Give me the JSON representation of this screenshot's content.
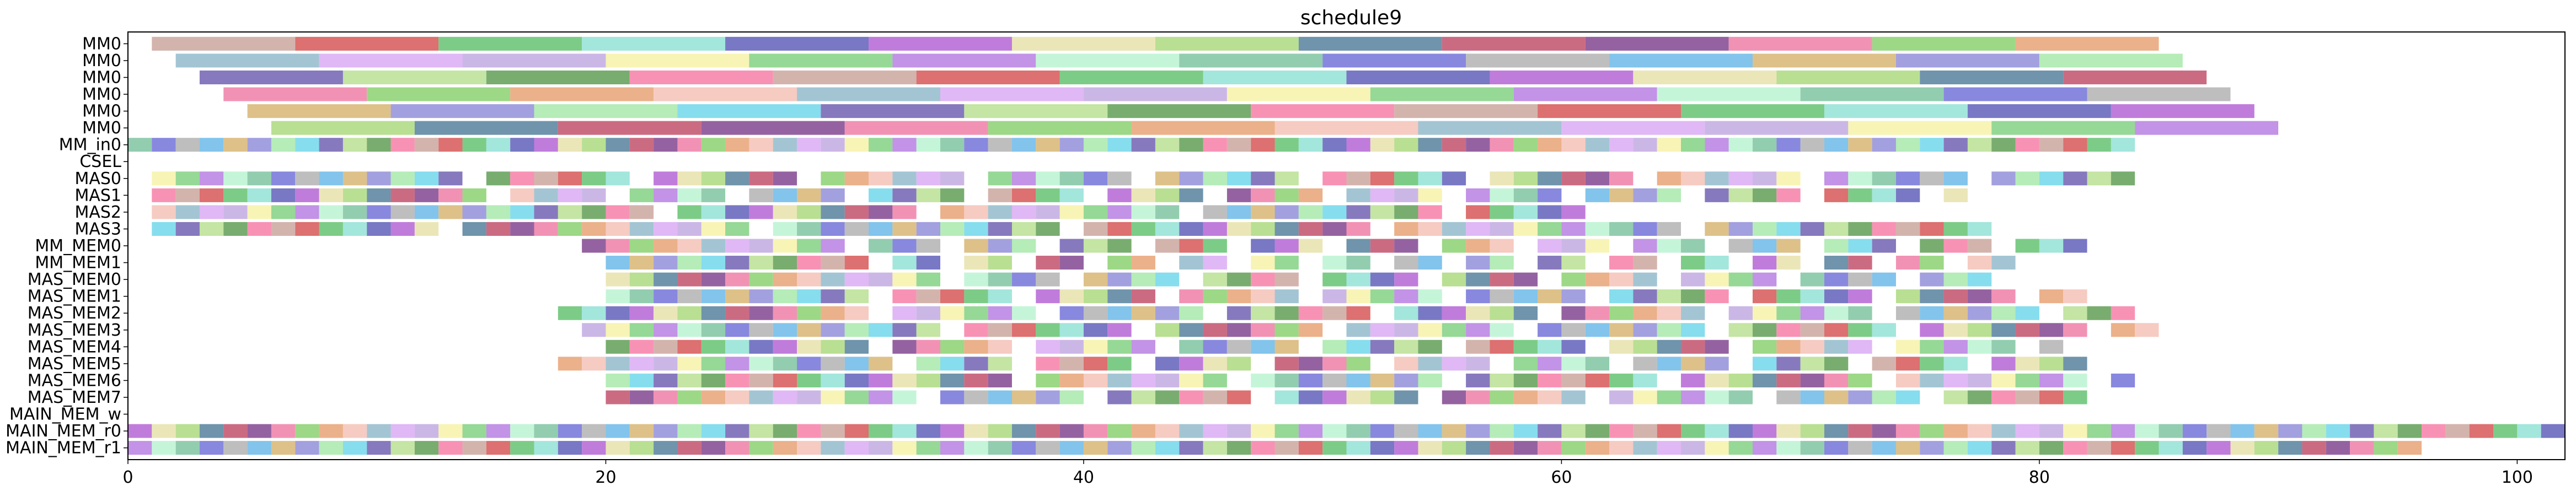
{
  "chart_data": {
    "type": "gantt",
    "title": "schedule9",
    "xlabel": "",
    "ylabel": "",
    "xlim": [
      0,
      102
    ],
    "xticks": [
      0,
      20,
      40,
      60,
      80,
      100
    ],
    "grid": false,
    "legend": "none",
    "rows": [
      "MM0",
      "MM0",
      "MM0",
      "MM0",
      "MM0",
      "MM0",
      "MM_in0",
      "CSEL",
      "MAS0",
      "MAS1",
      "MAS2",
      "MAS3",
      "MM_MEM0",
      "MM_MEM1",
      "MAS_MEM0",
      "MAS_MEM1",
      "MAS_MEM2",
      "MAS_MEM3",
      "MAS_MEM4",
      "MAS_MEM5",
      "MAS_MEM6",
      "MAS_MEM7",
      "MAIN_MEM_w",
      "MAIN_MEM_r0",
      "MAIN_MEM_r1"
    ],
    "palette": [
      "#c9a49b",
      "#b25fd3",
      "#7e3f8c",
      "#8fb8c9",
      "#b57be0",
      "#66b7e8",
      "#6c5bb0",
      "#d65050",
      "#e7e0a8",
      "#ee7aa3",
      "#d9a8f3",
      "#b8f3d0",
      "#d6b36f",
      "#b7df8f",
      "#5fc16d",
      "#a9d87a",
      "#86cf6b",
      "#bfa7e0",
      "#7ac29e",
      "#8f8bd8",
      "#5a9b4f",
      "#8fe0d4",
      "#4f7d99",
      "#e7a070",
      "#f5f1a6",
      "#6e6ed8",
      "#a5e8a8",
      "#f77aa5",
      "#5a5ab8",
      "#c04a67",
      "#f4c0b4",
      "#7fd07f",
      "#b0b0b0",
      "#6bd6e9"
    ],
    "gantt_rows": [
      {
        "row": 0,
        "start": 1,
        "dur": 6,
        "n": 14
      },
      {
        "row": 1,
        "start": 2,
        "dur": 6,
        "n": 14
      },
      {
        "row": 2,
        "start": 3,
        "dur": 6,
        "n": 14
      },
      {
        "row": 3,
        "start": 4,
        "dur": 6,
        "n": 14
      },
      {
        "row": 4,
        "start": 5,
        "dur": 6,
        "n": 14
      },
      {
        "row": 5,
        "start": 6,
        "dur": 6,
        "n": 14
      },
      {
        "row": 6,
        "start": 0,
        "dur": 1,
        "n": 84
      },
      {
        "row": 8,
        "start": 1,
        "dur": 1,
        "skip": 7,
        "n": 84
      },
      {
        "row": 9,
        "start": 1,
        "dur": 1,
        "skip": 5,
        "n": 76
      },
      {
        "row": 10,
        "start": 1,
        "dur": 1,
        "skip": 11,
        "n": 60
      },
      {
        "row": 11,
        "start": 1,
        "dur": 1,
        "skip": 13,
        "n": 78
      },
      {
        "row": 12,
        "start": 19,
        "dur": 1,
        "skip": 4,
        "n": 63
      },
      {
        "row": 13,
        "start": 20,
        "dur": 1,
        "skip": 3,
        "n": 60
      },
      {
        "row": 14,
        "start": 20,
        "dur": 1,
        "skip": 5,
        "n": 58
      },
      {
        "row": 15,
        "start": 20,
        "dur": 1,
        "skip": 6,
        "n": 62
      },
      {
        "row": 16,
        "start": 18,
        "dur": 1,
        "skip": 7,
        "n": 66
      },
      {
        "row": 17,
        "start": 19,
        "dur": 1,
        "skip": 8,
        "n": 66
      },
      {
        "row": 18,
        "start": 20,
        "dur": 1,
        "skip": 6,
        "n": 61
      },
      {
        "row": 19,
        "start": 18,
        "dur": 1,
        "skip": 5,
        "n": 64
      },
      {
        "row": 20,
        "start": 20,
        "dur": 1,
        "skip": 9,
        "n": 64
      },
      {
        "row": 21,
        "start": 20,
        "dur": 1,
        "skip": 7,
        "n": 63
      },
      {
        "row": 23,
        "start": 0,
        "dur": 1,
        "n": 102
      },
      {
        "row": 24,
        "start": 0,
        "dur": 1,
        "n": 96
      }
    ]
  }
}
